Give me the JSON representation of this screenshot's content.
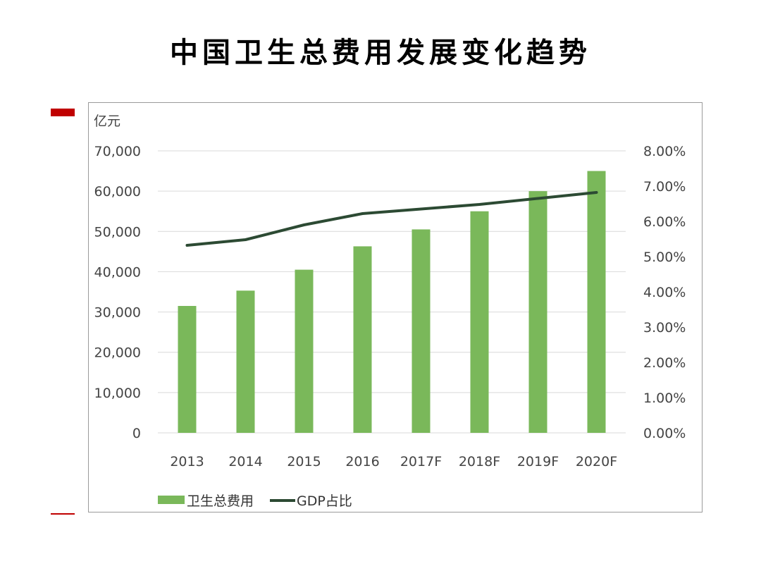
{
  "title": "中国卫生总费用发展变化趋势",
  "chart_data": {
    "type": "bar",
    "categories": [
      "2013",
      "2014",
      "2015",
      "2016",
      "2017F",
      "2018F",
      "2019F",
      "2020F"
    ],
    "series": [
      {
        "name": "卫生总费用",
        "type": "bar",
        "axis": "left",
        "values": [
          31500,
          35300,
          40500,
          46300,
          50500,
          55000,
          60000,
          65000
        ]
      },
      {
        "name": "GDP占比",
        "type": "line",
        "axis": "right",
        "values": [
          5.32,
          5.48,
          5.9,
          6.22,
          6.35,
          6.48,
          6.65,
          6.82
        ]
      }
    ],
    "y_left": {
      "unit_label": "亿元",
      "ylim": [
        0,
        70000
      ],
      "ticks": [
        0,
        10000,
        20000,
        30000,
        40000,
        50000,
        60000,
        70000
      ],
      "tick_labels": [
        "0",
        "10,000",
        "20,000",
        "30,000",
        "40,000",
        "50,000",
        "60,000",
        "70,000"
      ]
    },
    "y_right": {
      "ylim": [
        0,
        8
      ],
      "tick_labels": [
        "0.00%",
        "1.00%",
        "2.00%",
        "3.00%",
        "4.00%",
        "5.00%",
        "6.00%",
        "7.00%",
        "8.00%"
      ]
    },
    "grid": true,
    "legend_position": "bottom-left",
    "colors": {
      "bar": "#7ab85a",
      "line": "#2c4a33",
      "grid": "#d9d9d9"
    }
  }
}
